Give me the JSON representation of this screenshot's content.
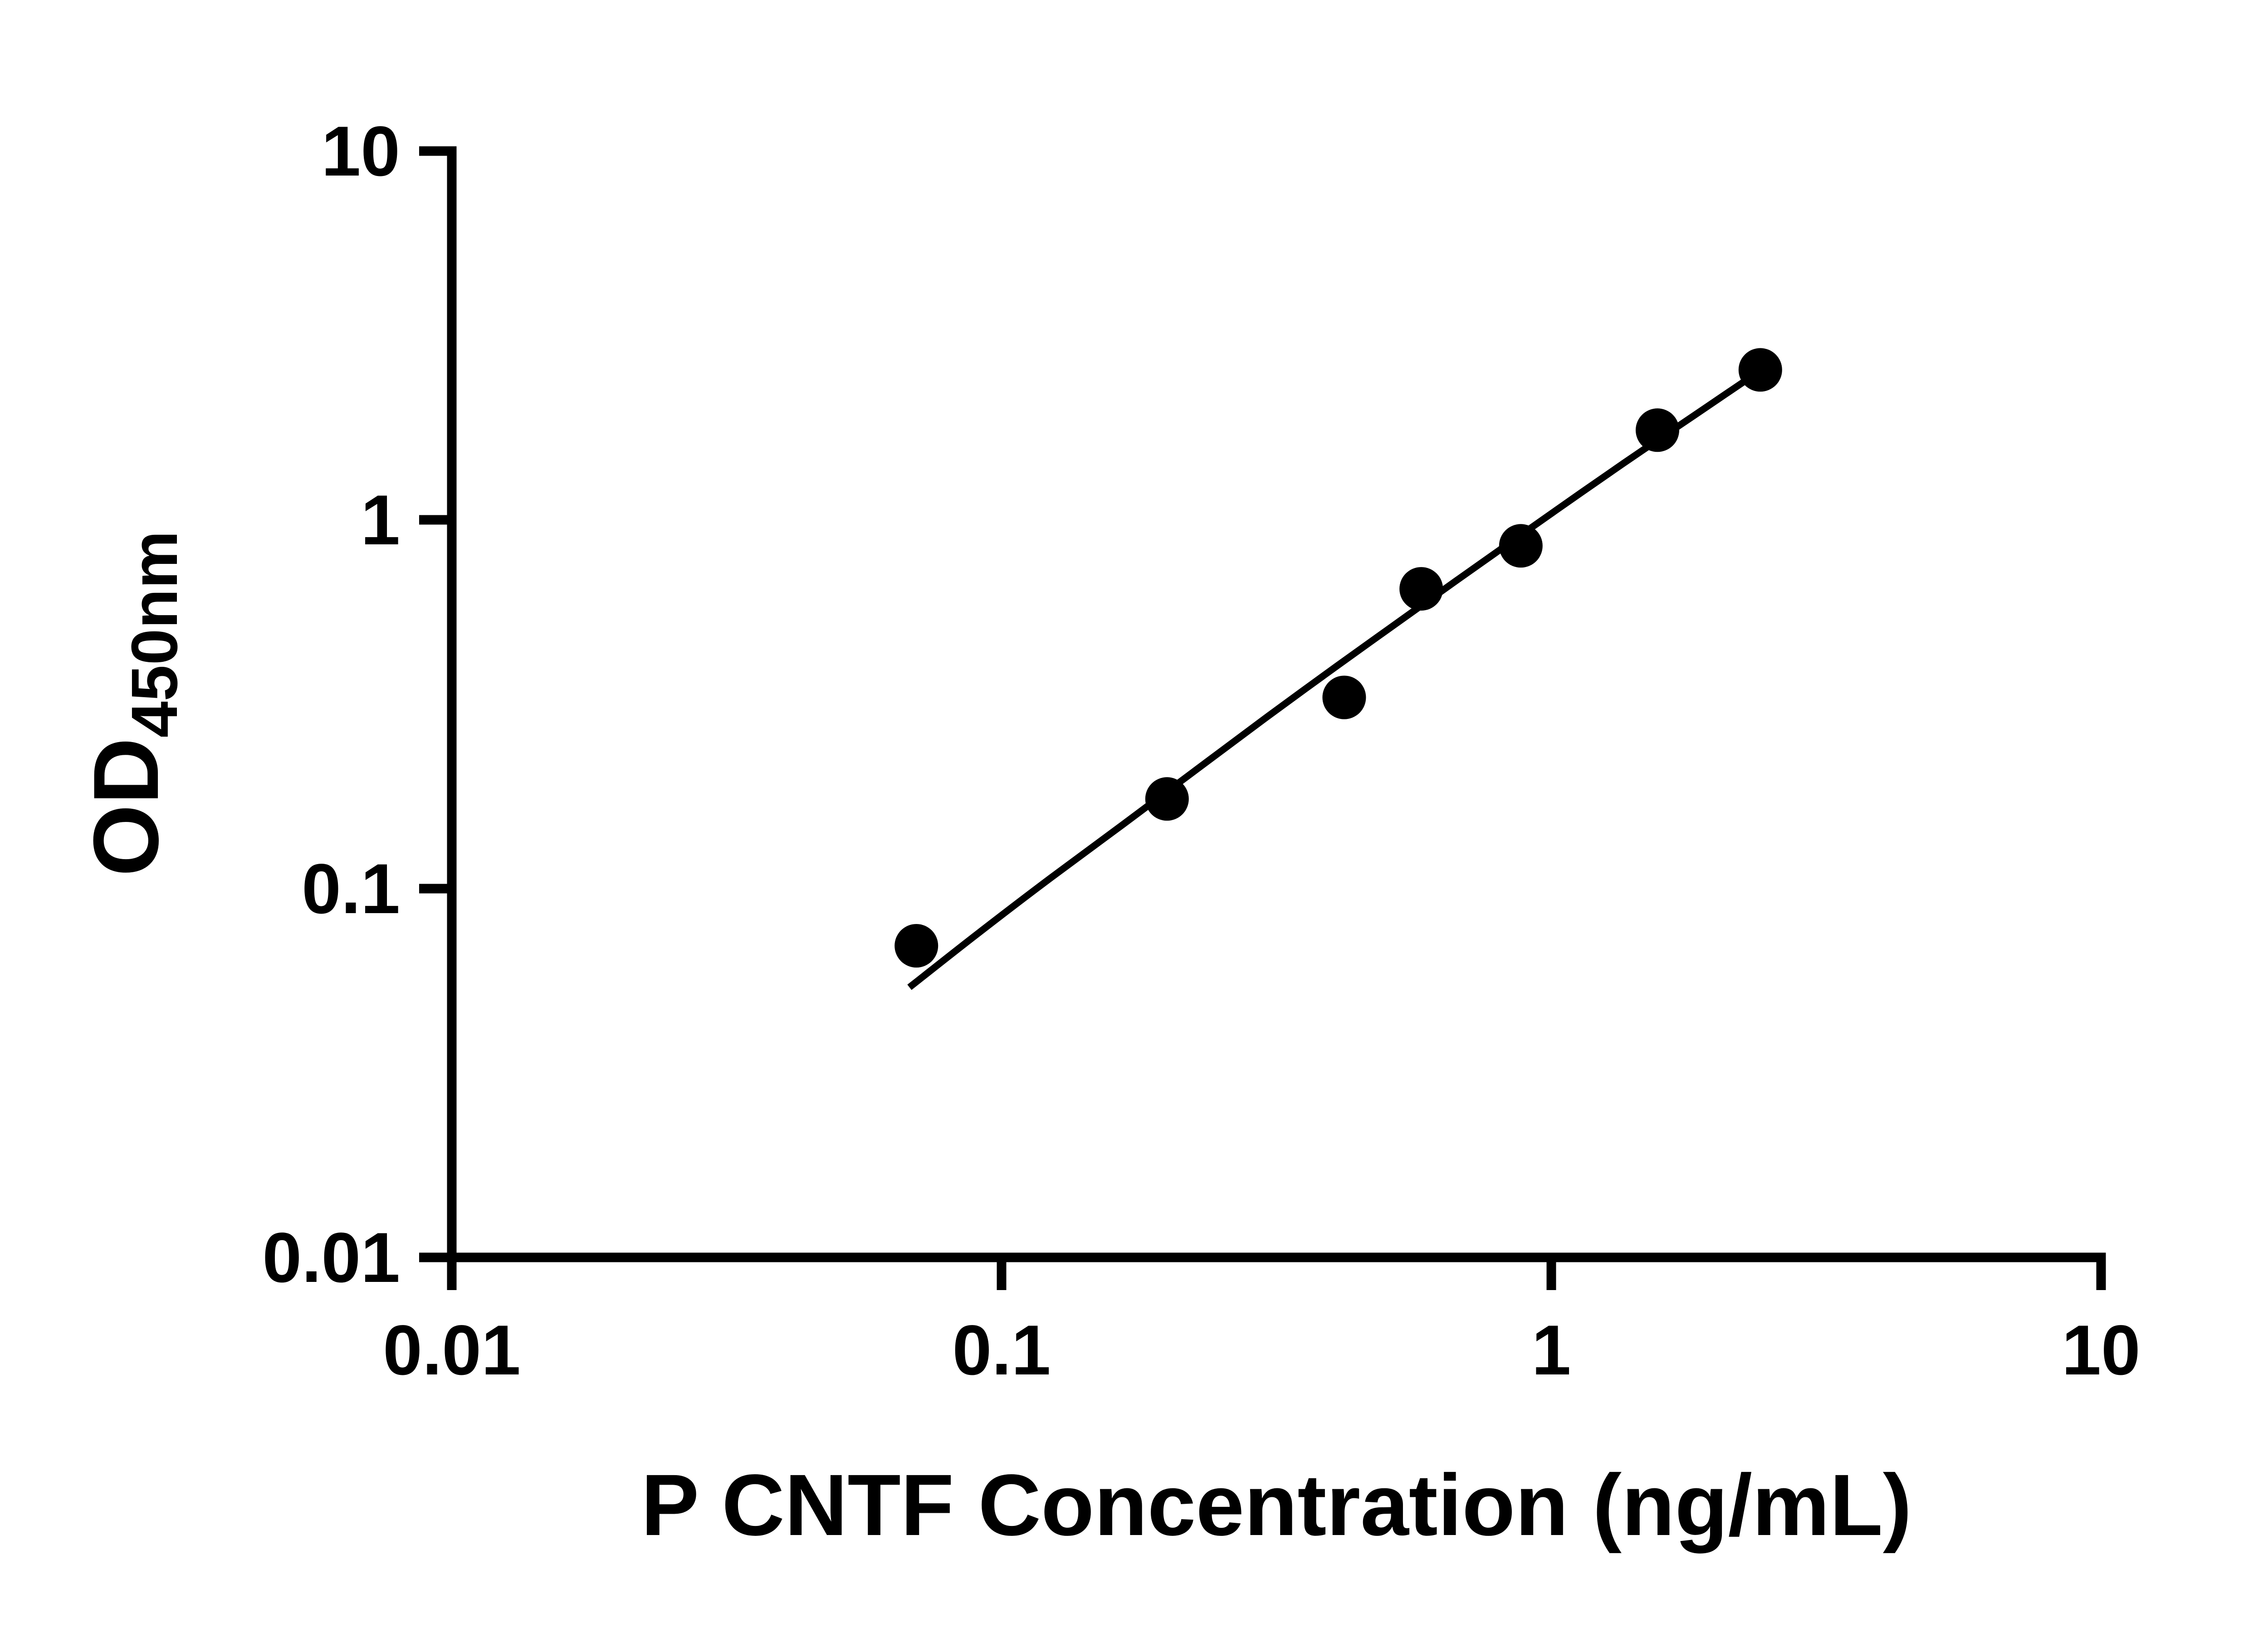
{
  "chart_data": {
    "type": "scatter",
    "title": "",
    "xlabel": "P CNTF Concentration (ng/mL)",
    "ylabel_main": "OD",
    "ylabel_sub": "450nm",
    "x_scale": "log",
    "y_scale": "log",
    "xlim": [
      0.01,
      10
    ],
    "ylim": [
      0.01,
      10
    ],
    "x_ticks": [
      0.01,
      0.1,
      1,
      10
    ],
    "x_tick_labels": [
      "0.01",
      "0.1",
      "1",
      "10"
    ],
    "y_ticks": [
      0.01,
      0.1,
      1,
      10
    ],
    "y_tick_labels": [
      "0.01",
      "0.1",
      "1",
      "10"
    ],
    "grid": "off",
    "legend": "none",
    "marker_color": "#000000",
    "line_color": "#000000",
    "background": "#ffffff",
    "series": [
      {
        "name": "standard-points",
        "type": "scatter",
        "points": [
          [
            0.07,
            0.07
          ],
          [
            0.2,
            0.175
          ],
          [
            0.42,
            0.33
          ],
          [
            0.58,
            0.65
          ],
          [
            0.88,
            0.85
          ],
          [
            1.56,
            1.75
          ],
          [
            2.4,
            2.55
          ]
        ]
      },
      {
        "name": "fit-curve",
        "type": "line",
        "points": [
          [
            0.068,
            0.054
          ],
          [
            0.091,
            0.076
          ],
          [
            0.123,
            0.107
          ],
          [
            0.166,
            0.149
          ],
          [
            0.224,
            0.208
          ],
          [
            0.302,
            0.29
          ],
          [
            0.407,
            0.401
          ],
          [
            0.55,
            0.553
          ],
          [
            0.741,
            0.759
          ],
          [
            1.0,
            1.04
          ],
          [
            1.35,
            1.42
          ],
          [
            1.82,
            1.92
          ],
          [
            2.4,
            2.54
          ]
        ]
      }
    ]
  }
}
